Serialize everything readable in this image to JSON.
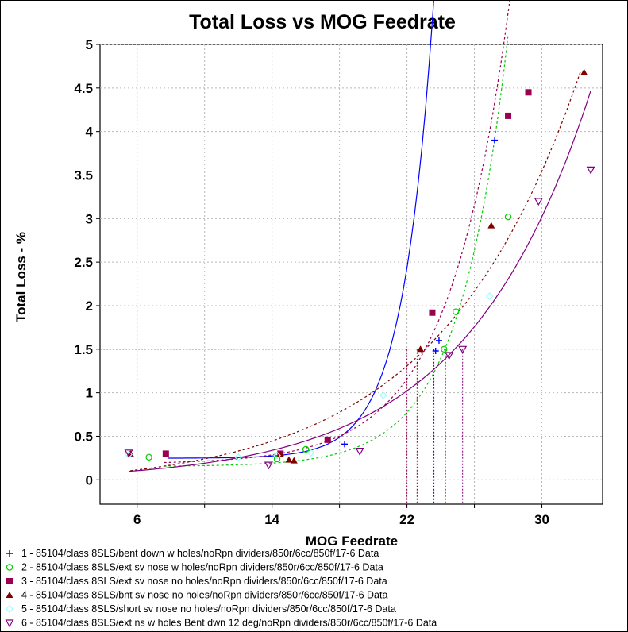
{
  "chart_data": {
    "type": "scatter",
    "title": "Total Loss  vs  MOG Feedrate",
    "xlabel": "MOG Feedrate",
    "ylabel": "Total Loss - %",
    "xlim": [
      3.8,
      33.6
    ],
    "ylim": [
      -0.28,
      5.0
    ],
    "xticks": [
      6,
      14,
      22,
      30
    ],
    "yticks": [
      0,
      0.5,
      1,
      1.5,
      2,
      2.5,
      3,
      3.5,
      4,
      4.5,
      5
    ],
    "x_minor_gridlines": [
      10,
      18,
      26
    ],
    "grid": true,
    "legend_position": "bottom",
    "reference_level": 1.5,
    "series": [
      {
        "name": "1 - 85104/class 8SLS/bent down w holes/noRpn dividers/850r/6cc/850f/17-6 Data",
        "marker": "plus",
        "color": "#0000ff",
        "points": [
          [
            18.3,
            0.41
          ],
          [
            23.9,
            1.6
          ],
          [
            23.7,
            1.48
          ],
          [
            27.2,
            3.9
          ]
        ],
        "fit": {
          "a": 0.2479,
          "b": 1.156e-05,
          "c": 0.5523,
          "x_range": [
            7.8,
            27.2
          ],
          "style": "solid"
        },
        "crossing_x": 23.6
      },
      {
        "name": "2 - 85104/class 8SLS/ext sv nose w holes/noRpn dividers/850r/6cc/850f/17-6 Data",
        "marker": "circle",
        "color": "#00cc00",
        "points": [
          [
            6.7,
            0.26
          ],
          [
            14.3,
            0.24
          ],
          [
            16.0,
            0.35
          ],
          [
            24.9,
            1.93
          ],
          [
            24.2,
            1.5
          ],
          [
            28.0,
            3.02
          ]
        ],
        "fit": {
          "a": 0.1535,
          "b": 0.0003025,
          "c": 0.3466,
          "x_range": [
            7.6,
            28.0
          ],
          "style": "dotted"
        },
        "crossing_x": 24.3
      },
      {
        "name": "3 - 85104/class 8SLS/ext sv nose no holes/noRpn dividers/850r/6cc/850f/17-6 Data",
        "marker": "square",
        "color": "#9a0050",
        "points": [
          [
            7.7,
            0.3
          ],
          [
            14.5,
            0.3
          ],
          [
            17.3,
            0.46
          ],
          [
            23.5,
            1.92
          ],
          [
            28.0,
            4.18
          ],
          [
            29.2,
            4.45
          ]
        ],
        "fit": {
          "a": 0.1811,
          "b": 0.002147,
          "c": 0.2782,
          "x_range": [
            7.6,
            29.0
          ],
          "style": "dotted"
        },
        "crossing_x": 22.0
      },
      {
        "name": "4 - 85104/class 8SLS/bnt sv nose no holes/noRpn dividers/850r/6cc/850f/17-6 Data",
        "marker": "triangle",
        "color": "#800000",
        "points": [
          [
            5.6,
            0.3
          ],
          [
            14.5,
            0.29
          ],
          [
            15.0,
            0.23
          ],
          [
            15.3,
            0.22
          ],
          [
            22.8,
            1.5
          ],
          [
            27.0,
            2.92
          ],
          [
            32.5,
            4.68
          ]
        ],
        "fit": {
          "a": -0.0945,
          "b": 0.1016,
          "c": 0.1193,
          "x_range": [
            5.6,
            32.3
          ],
          "style": "dotted"
        },
        "crossing_x": 22.6
      },
      {
        "name": "5 - 85104/class 8SLS/short sv nose no holes/noRpn dividers/850r/6cc/850f/17-6 Data",
        "marker": "diamond",
        "color": "#99ffff",
        "points": [
          [
            5.5,
            0.29
          ],
          [
            12.0,
            0.26
          ],
          [
            14.3,
            0.28
          ],
          [
            16.3,
            0.31
          ],
          [
            20.6,
            0.97
          ],
          [
            26.9,
            2.11
          ]
        ],
        "fit": null,
        "crossing_x": null
      },
      {
        "name": "6 - 85104/class 8SLS/ext ns w holes Bent dwn 12 deg/noRpn dividers/850r/6cc/850f/17-6 Data",
        "marker": "triangle-down",
        "color": "#800080",
        "points": [
          [
            5.5,
            0.31
          ],
          [
            13.8,
            0.17
          ],
          [
            19.2,
            0.33
          ],
          [
            24.5,
            1.43
          ],
          [
            25.3,
            1.5
          ],
          [
            29.8,
            3.2
          ],
          [
            32.9,
            3.56
          ]
        ],
        "fit": {
          "a": -0.0164,
          "b": 0.05405,
          "c": 0.1343,
          "x_range": [
            5.5,
            32.9
          ],
          "style": "solid"
        },
        "crossing_x": 25.3
      }
    ]
  }
}
